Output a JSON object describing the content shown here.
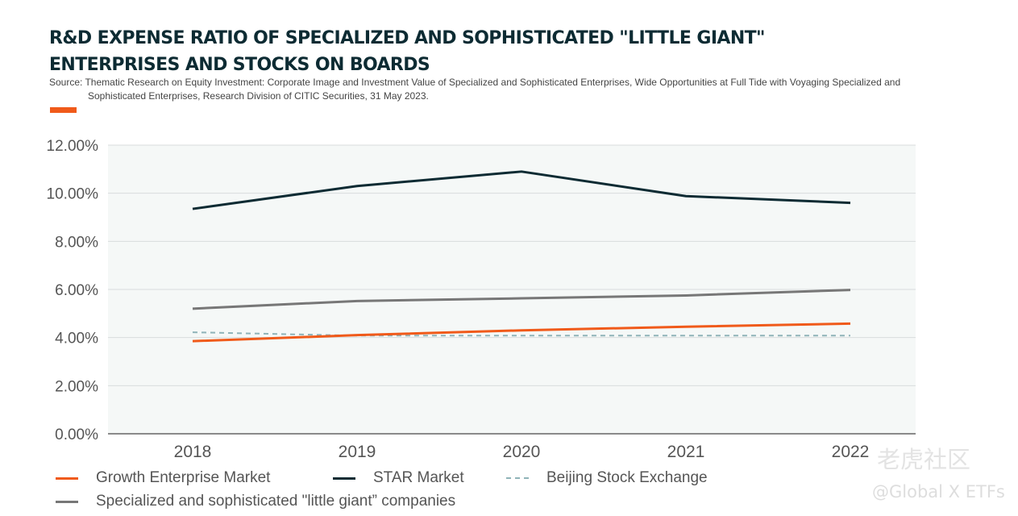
{
  "title_line1": "R&D EXPENSE RATIO OF SPECIALIZED AND SOPHISTICATED \"LITTLE GIANT\"",
  "title_line2": "ENTERPRISES AND STOCKS ON BOARDS",
  "source_line1": "Source: Thematic Research on Equity Investment: Corporate Image and Investment Value of Specialized and Sophisticated Enterprises, Wide Opportunities at Full Tide with Voyaging Specialized and",
  "source_line2": "Sophisticated Enterprises, Research Division of CITIC Securities, 31 May 2023.",
  "accent_color": "#f05a1a",
  "watermark": {
    "brand": "老虎社区",
    "handle": "@Global X ETFs"
  },
  "chart_data": {
    "type": "line",
    "title": "R&D EXPENSE RATIO OF SPECIALIZED AND SOPHISTICATED \"LITTLE GIANT\" ENTERPRISES AND STOCKS ON BOARDS",
    "xlabel": "",
    "ylabel": "",
    "categories": [
      "2018",
      "2019",
      "2020",
      "2021",
      "2022"
    ],
    "ylim": [
      0,
      12
    ],
    "yticks": [
      0,
      2,
      4,
      6,
      8,
      10,
      12
    ],
    "ytick_labels": [
      "0.00%",
      "2.00%",
      "4.00%",
      "6.00%",
      "8.00%",
      "10.00%",
      "12.00%"
    ],
    "grid": true,
    "plot_background": "#f5f8f7",
    "legend_position": "bottom",
    "series": [
      {
        "name": "Growth Enterprise Market",
        "values": [
          3.85,
          4.1,
          4.3,
          4.45,
          4.58
        ],
        "color": "#f05a1a",
        "style": "solid"
      },
      {
        "name": "STAR Market",
        "values": [
          9.35,
          10.3,
          10.9,
          9.88,
          9.6
        ],
        "color": "#0d2b33",
        "style": "solid"
      },
      {
        "name": "Beijing Stock Exchange",
        "values": [
          4.22,
          4.08,
          4.08,
          4.08,
          4.08
        ],
        "color": "#8fb3b8",
        "style": "dashed"
      },
      {
        "name": "Specialized and sophisticated \"little giant” companies",
        "values": [
          5.2,
          5.52,
          5.63,
          5.75,
          5.98
        ],
        "color": "#777777",
        "style": "solid"
      }
    ]
  }
}
